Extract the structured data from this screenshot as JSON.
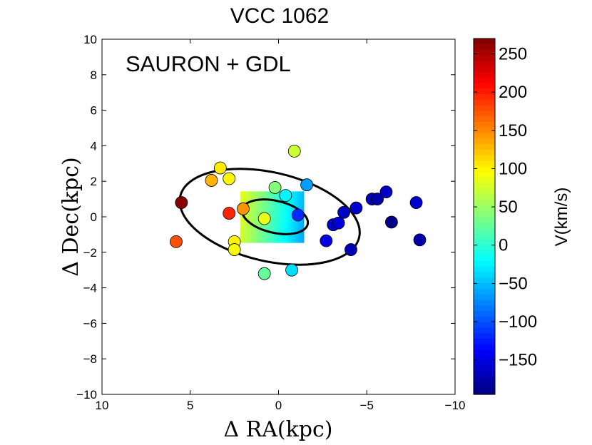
{
  "chart_data": {
    "type": "scatter",
    "title": "VCC 1062",
    "annotation": "SAURON + GDL",
    "xlabel": "Δ RA(kpc)",
    "ylabel": "Δ Dec(kpc)",
    "xlim": [
      10,
      -10
    ],
    "ylim": [
      -10,
      10
    ],
    "xticks": [
      10,
      5,
      0,
      -5,
      -10
    ],
    "yticks": [
      10,
      8,
      6,
      4,
      2,
      0,
      -2,
      -4,
      -6,
      -8,
      -10
    ],
    "xtick_labels": [
      "10",
      "5",
      "0",
      "−5",
      "−10"
    ],
    "ytick_labels": [
      "10",
      "8",
      "6",
      "4",
      "2",
      "0",
      "−2",
      "−4",
      "−6",
      "−8",
      "−10"
    ],
    "colorbar": {
      "label": "V(km/s)",
      "vmin": -195,
      "vmax": 270,
      "ticks": [
        250,
        200,
        150,
        100,
        50,
        0,
        -50,
        -100,
        -150
      ],
      "tick_labels": [
        "250",
        "200",
        "150",
        "100",
        "50",
        "0",
        "−50",
        "−100",
        "−150"
      ]
    },
    "ellipses": [
      {
        "name": "outer",
        "cx": 0.5,
        "cy": 0.0,
        "a": 5.2,
        "b": 2.5,
        "angle_deg": 13
      },
      {
        "name": "inner",
        "cx": 0.2,
        "cy": 0.0,
        "a": 1.9,
        "b": 0.9,
        "angle_deg": 13
      }
    ],
    "sauron_field": {
      "x_range": [
        2.1,
        -1.5
      ],
      "y_range": [
        -1.4,
        1.4
      ],
      "v_east": 80,
      "v_west": -60
    },
    "points": [
      {
        "x": 5.5,
        "y": 0.8,
        "v": 265
      },
      {
        "x": 5.8,
        "y": -1.4,
        "v": 175
      },
      {
        "x": 2.8,
        "y": 0.2,
        "v": 195
      },
      {
        "x": 2.0,
        "y": 0.45,
        "v": 145
      },
      {
        "x": 3.3,
        "y": 2.75,
        "v": 105
      },
      {
        "x": 3.8,
        "y": 2.05,
        "v": 130
      },
      {
        "x": 2.8,
        "y": 2.15,
        "v": 100
      },
      {
        "x": 2.5,
        "y": -1.4,
        "v": 100
      },
      {
        "x": 2.5,
        "y": -1.85,
        "v": 92
      },
      {
        "x": 0.8,
        "y": -0.1,
        "v": 85
      },
      {
        "x": -0.9,
        "y": 3.7,
        "v": 72
      },
      {
        "x": 0.2,
        "y": 1.65,
        "v": 40
      },
      {
        "x": 0.8,
        "y": -3.2,
        "v": 25
      },
      {
        "x": -0.4,
        "y": 1.2,
        "v": -25
      },
      {
        "x": -0.75,
        "y": -3.0,
        "v": -35
      },
      {
        "x": -1.6,
        "y": 1.8,
        "v": -65
      },
      {
        "x": -1.1,
        "y": 0.1,
        "v": -118
      },
      {
        "x": -2.7,
        "y": -1.35,
        "v": -150
      },
      {
        "x": -3.1,
        "y": -0.45,
        "v": -160
      },
      {
        "x": -3.4,
        "y": -0.35,
        "v": -155
      },
      {
        "x": -3.7,
        "y": 0.25,
        "v": -165
      },
      {
        "x": -4.1,
        "y": -1.85,
        "v": -170
      },
      {
        "x": -4.4,
        "y": 0.5,
        "v": -160
      },
      {
        "x": -5.3,
        "y": 1.0,
        "v": -170
      },
      {
        "x": -5.6,
        "y": 1.0,
        "v": -175
      },
      {
        "x": -6.1,
        "y": 1.4,
        "v": -165
      },
      {
        "x": -6.4,
        "y": -0.3,
        "v": -190
      },
      {
        "x": -7.8,
        "y": 0.8,
        "v": -160
      },
      {
        "x": -8.0,
        "y": -1.3,
        "v": -175
      }
    ]
  }
}
